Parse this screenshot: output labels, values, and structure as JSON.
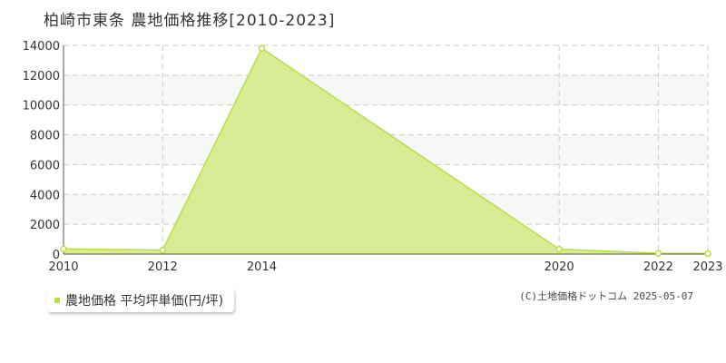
{
  "title": "柏崎市東条  農地価格推移[2010-2023]",
  "legend_label": "農地価格 平均坪単価(円/坪)",
  "copyright": "(C)土地価格ドットコム 2025-05-07",
  "colors": {
    "fill": "#d9ec95",
    "line": "#b6e23a",
    "grid": "#cccccc"
  },
  "chart_data": {
    "type": "area",
    "title": "柏崎市東条 農地価格推移[2010-2023]",
    "x": [
      2010,
      2012,
      2014,
      2020,
      2022,
      2023
    ],
    "series": [
      {
        "name": "農地価格 平均坪単価(円/坪)",
        "values": [
          350,
          270,
          13800,
          330,
          50,
          40
        ]
      }
    ],
    "x_ticks": [
      "2010",
      "2012",
      "2014",
      "2020",
      "2022",
      "2023"
    ],
    "y_ticks": [
      "0",
      "2000",
      "4000",
      "6000",
      "8000",
      "10000",
      "12000",
      "14000"
    ],
    "ylim": [
      0,
      14000
    ],
    "grid": true,
    "legend_position": "bottom-left"
  }
}
